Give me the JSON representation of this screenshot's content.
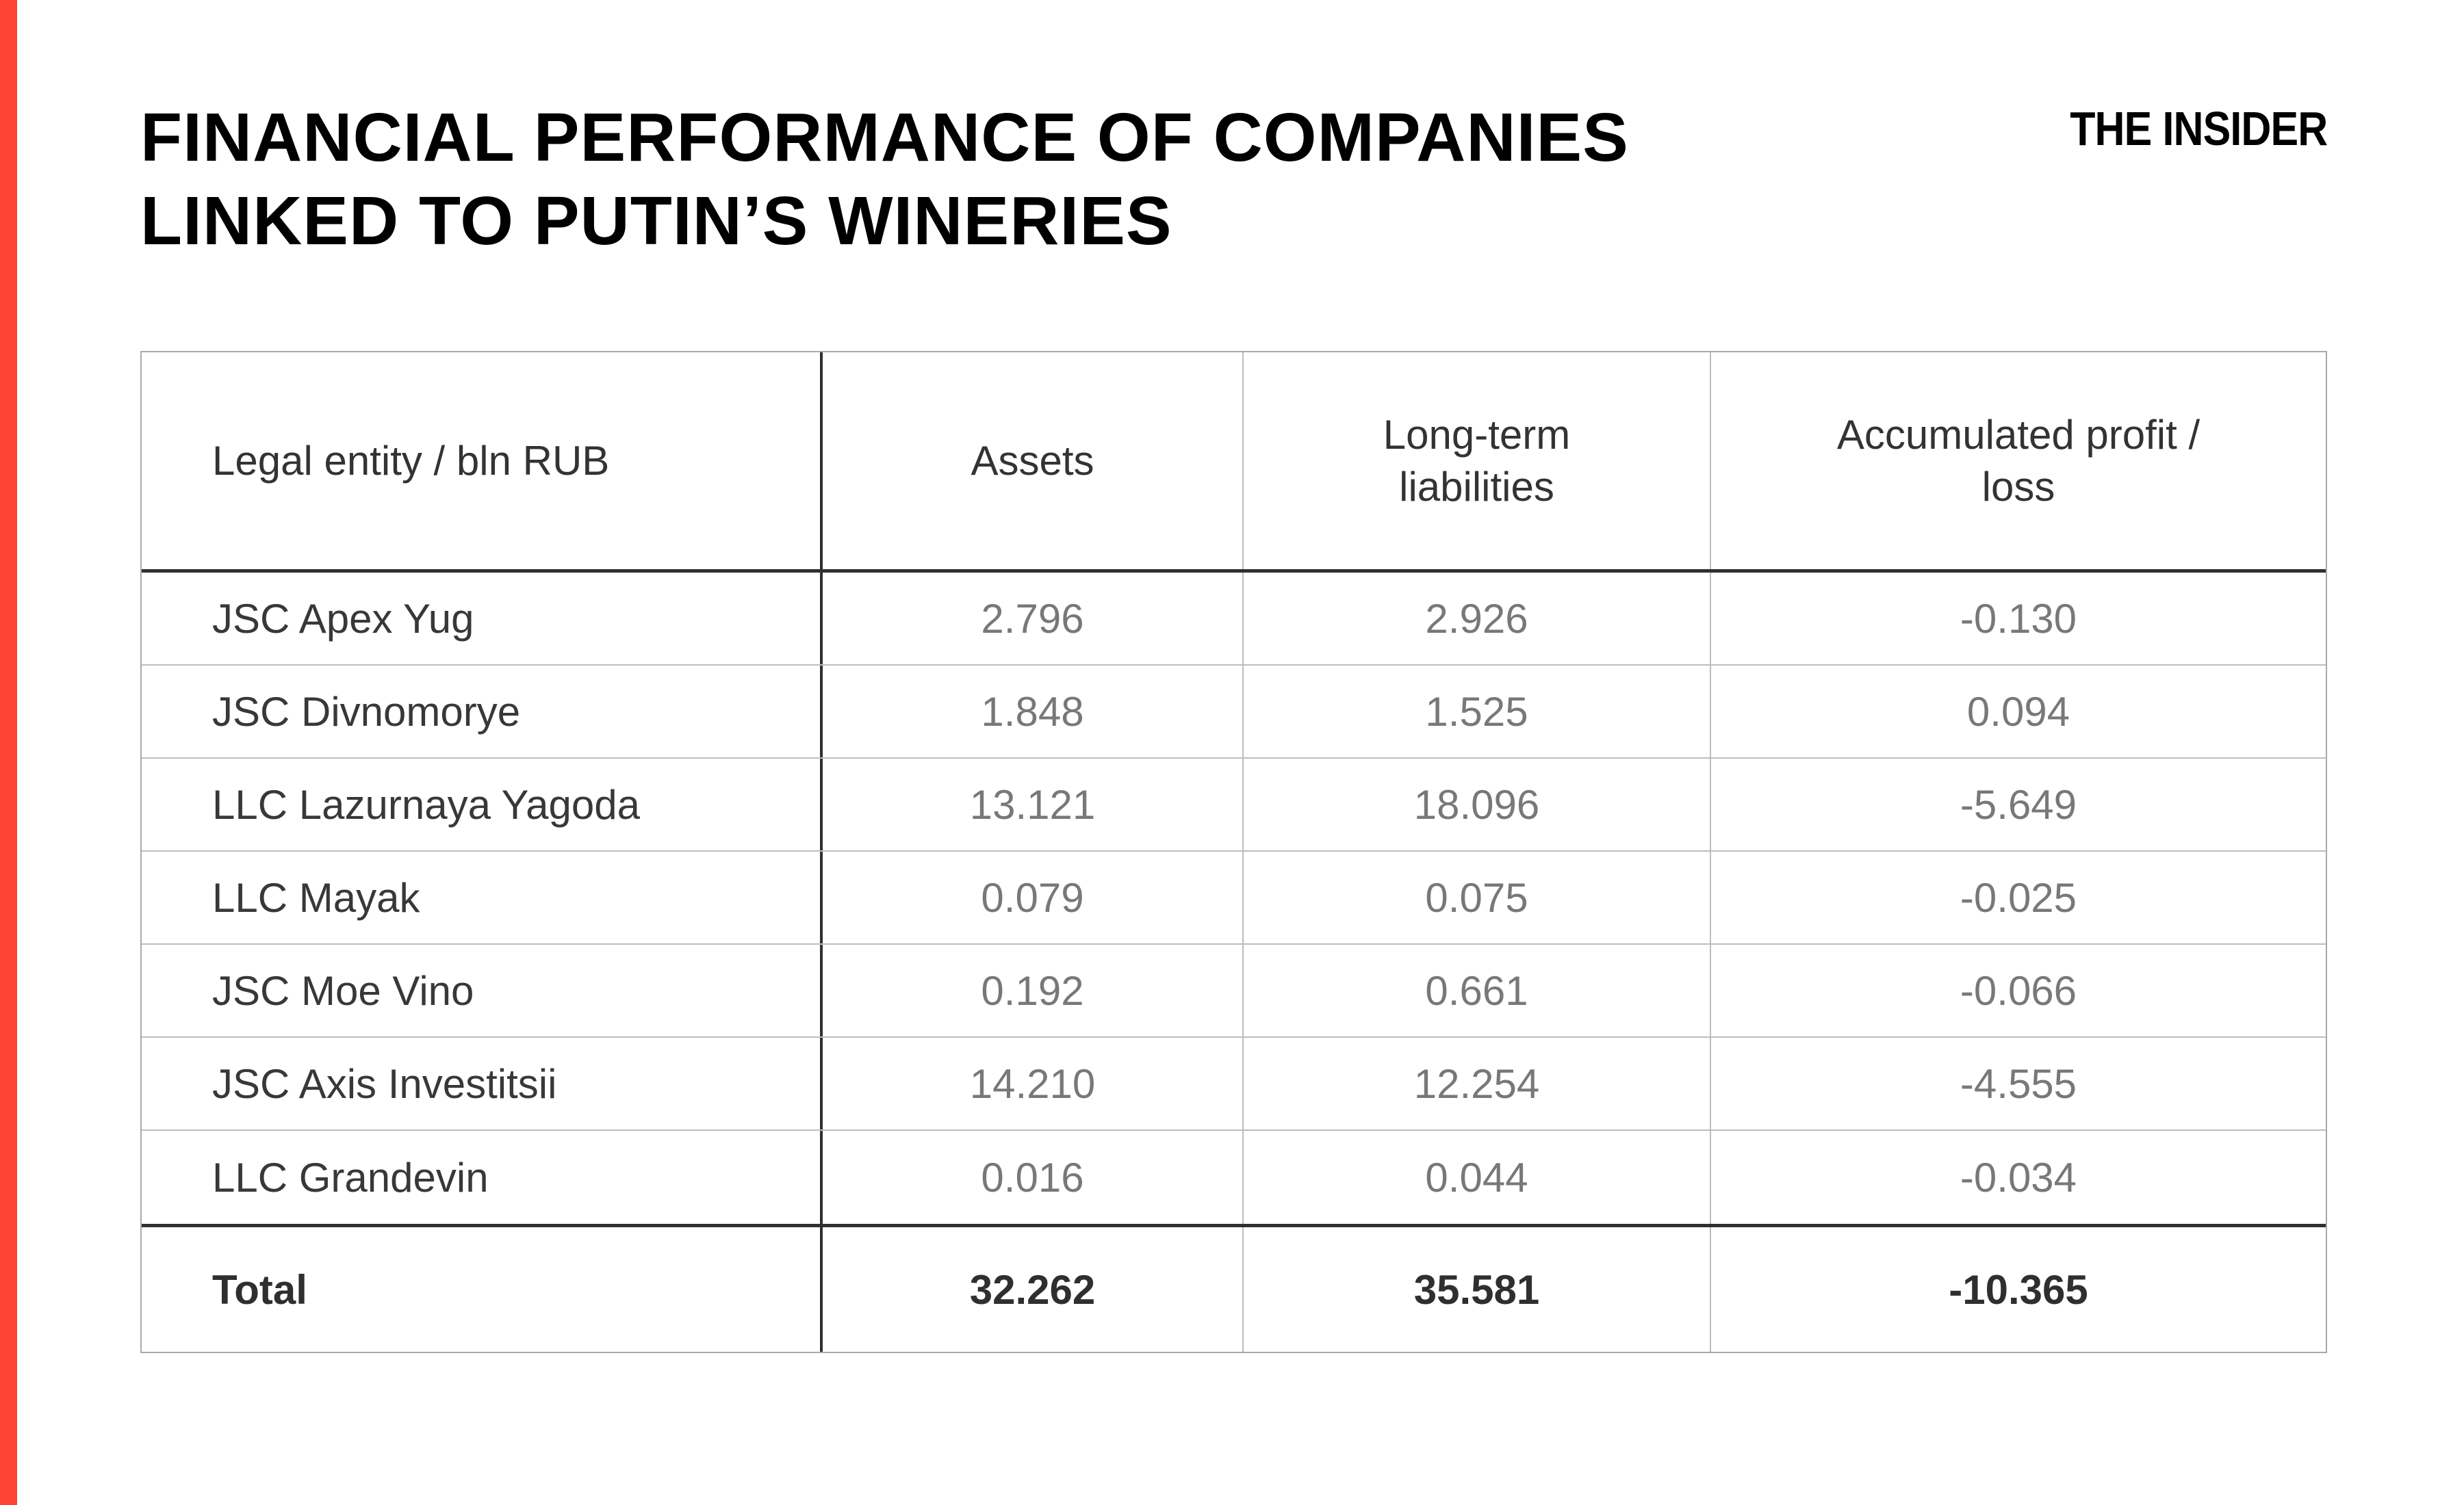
{
  "page": {
    "background": "#ffffff",
    "accent_color": "#ff4334"
  },
  "header": {
    "title": "FINANCIAL PERFORMANCE OF COMPANIES\nLINKED TO PUTIN’S WINERIES",
    "logo": "THE INSIDER"
  },
  "table": {
    "columns": [
      {
        "label": "Legal entity / bln RUB"
      },
      {
        "label": "Assets"
      },
      {
        "label": "Long-term\nliabilities"
      },
      {
        "label": "Accumulated profit /\nloss"
      }
    ],
    "rows": [
      {
        "entity": "JSC Apex Yug",
        "assets": "2.796",
        "liabilities": "2.926",
        "profit": "-0.130"
      },
      {
        "entity": "JSC Divnomorye",
        "assets": "1.848",
        "liabilities": "1.525",
        "profit": "0.094"
      },
      {
        "entity": "LLC Lazurnaya Yagoda",
        "assets": "13.121",
        "liabilities": "18.096",
        "profit": "-5.649"
      },
      {
        "entity": "LLC Mayak",
        "assets": "0.079",
        "liabilities": "0.075",
        "profit": "-0.025"
      },
      {
        "entity": "JSC Moe Vino",
        "assets": "0.192",
        "liabilities": "0.661",
        "profit": "-0.066"
      },
      {
        "entity": "JSC Axis Investitsii",
        "assets": "14.210",
        "liabilities": "12.254",
        "profit": "-4.555"
      },
      {
        "entity": "LLC Grandevin",
        "assets": "0.016",
        "liabilities": "0.044",
        "profit": "-0.034"
      }
    ],
    "total": {
      "label": "Total",
      "assets": "32.262",
      "liabilities": "35.581",
      "profit": "-10.365"
    }
  },
  "chart_data": {
    "type": "table",
    "title": "Financial performance of companies linked to Putin's wineries",
    "unit": "bln RUB",
    "columns": [
      "Legal entity / bln RUB",
      "Assets",
      "Long-term liabilities",
      "Accumulated profit / loss"
    ],
    "rows": [
      [
        "JSC Apex Yug",
        2.796,
        2.926,
        -0.13
      ],
      [
        "JSC Divnomorye",
        1.848,
        1.525,
        0.094
      ],
      [
        "LLC Lazurnaya Yagoda",
        13.121,
        18.096,
        -5.649
      ],
      [
        "LLC Mayak",
        0.079,
        0.075,
        -0.025
      ],
      [
        "JSC Moe Vino",
        0.192,
        0.661,
        -0.066
      ],
      [
        "JSC Axis Investitsii",
        14.21,
        12.254,
        -4.555
      ],
      [
        "LLC Grandevin",
        0.016,
        0.044,
        -0.034
      ]
    ],
    "total_row": [
      "Total",
      32.262,
      35.581,
      -10.365
    ]
  }
}
